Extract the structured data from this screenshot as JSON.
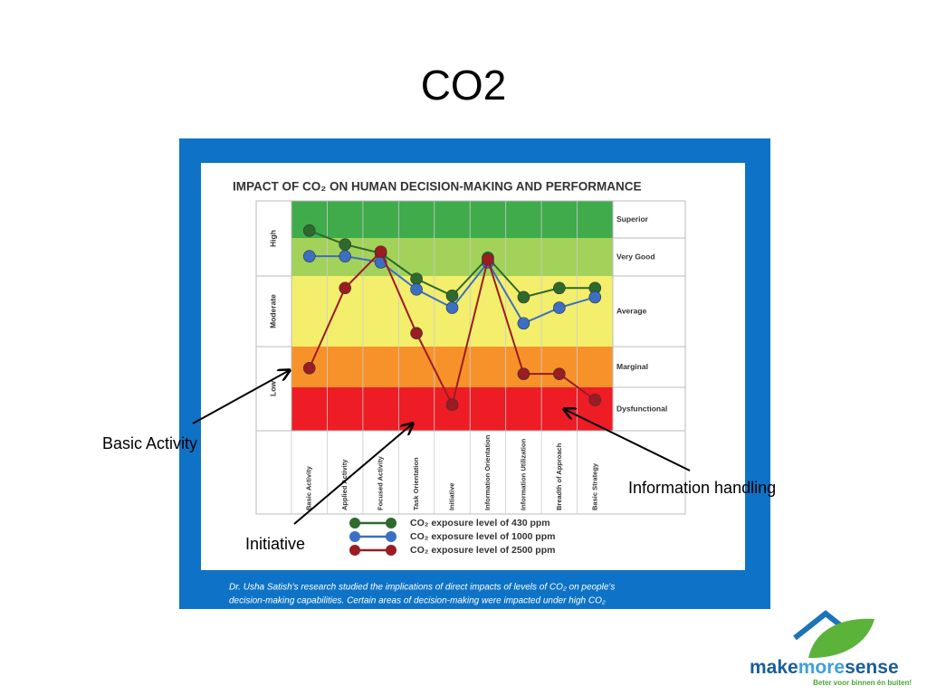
{
  "slide": {
    "title": "CO2",
    "annotations": [
      "Basic Activity",
      "Initiative",
      "Information handling"
    ],
    "caption": [
      "Dr. Usha Satish's research studied the implications of direct impacts of levels of CO₂ on people's",
      "decision-making capabilities. Certain areas of decision-making were impacted under high CO₂"
    ],
    "logo": {
      "parts": [
        "make",
        "more",
        "sense"
      ],
      "tagline": "Beter voor binnen én buiten!"
    }
  },
  "chart_data": {
    "type": "line",
    "title": "IMPACT OF CO₂ ON HUMAN DECISION-MAKING AND PERFORMANCE",
    "categories": [
      "Basic Activity",
      "Applied Activity",
      "Focused Activity",
      "Task Orientation",
      "Initiative",
      "Information Orientation",
      "Information Utilization",
      "Breadth of Approach",
      "Basic Strategy"
    ],
    "levels": [
      {
        "name": "Dysfunctional",
        "color": "#ee1c25"
      },
      {
        "name": "Marginal",
        "color": "#f7922b"
      },
      {
        "name": "Average",
        "color": "#f3ee6c"
      },
      {
        "name": "Very Good",
        "color": "#a3d25a"
      },
      {
        "name": "Superior",
        "color": "#3fab4b"
      }
    ],
    "groups": [
      "Low",
      "Moderate",
      "High"
    ],
    "ylim": [
      0,
      5
    ],
    "series": [
      {
        "name": "CO₂ exposure level of 430 ppm",
        "color": "#2d6a2d",
        "values": [
          4.2,
          3.83,
          3.6,
          2.96,
          2.72,
          3.48,
          2.7,
          2.83,
          2.83
        ]
      },
      {
        "name": "CO₂ exposure level of 1000 ppm",
        "color": "#3a6fc4",
        "values": [
          3.52,
          3.52,
          3.36,
          2.81,
          2.55,
          3.36,
          2.33,
          2.55,
          2.7
        ]
      },
      {
        "name": "CO₂ exposure level of 2500 ppm",
        "color": "#9b1c22",
        "values": [
          1.47,
          2.83,
          3.64,
          2.19,
          0.6,
          3.43,
          1.33,
          1.33,
          0.71
        ]
      }
    ]
  }
}
